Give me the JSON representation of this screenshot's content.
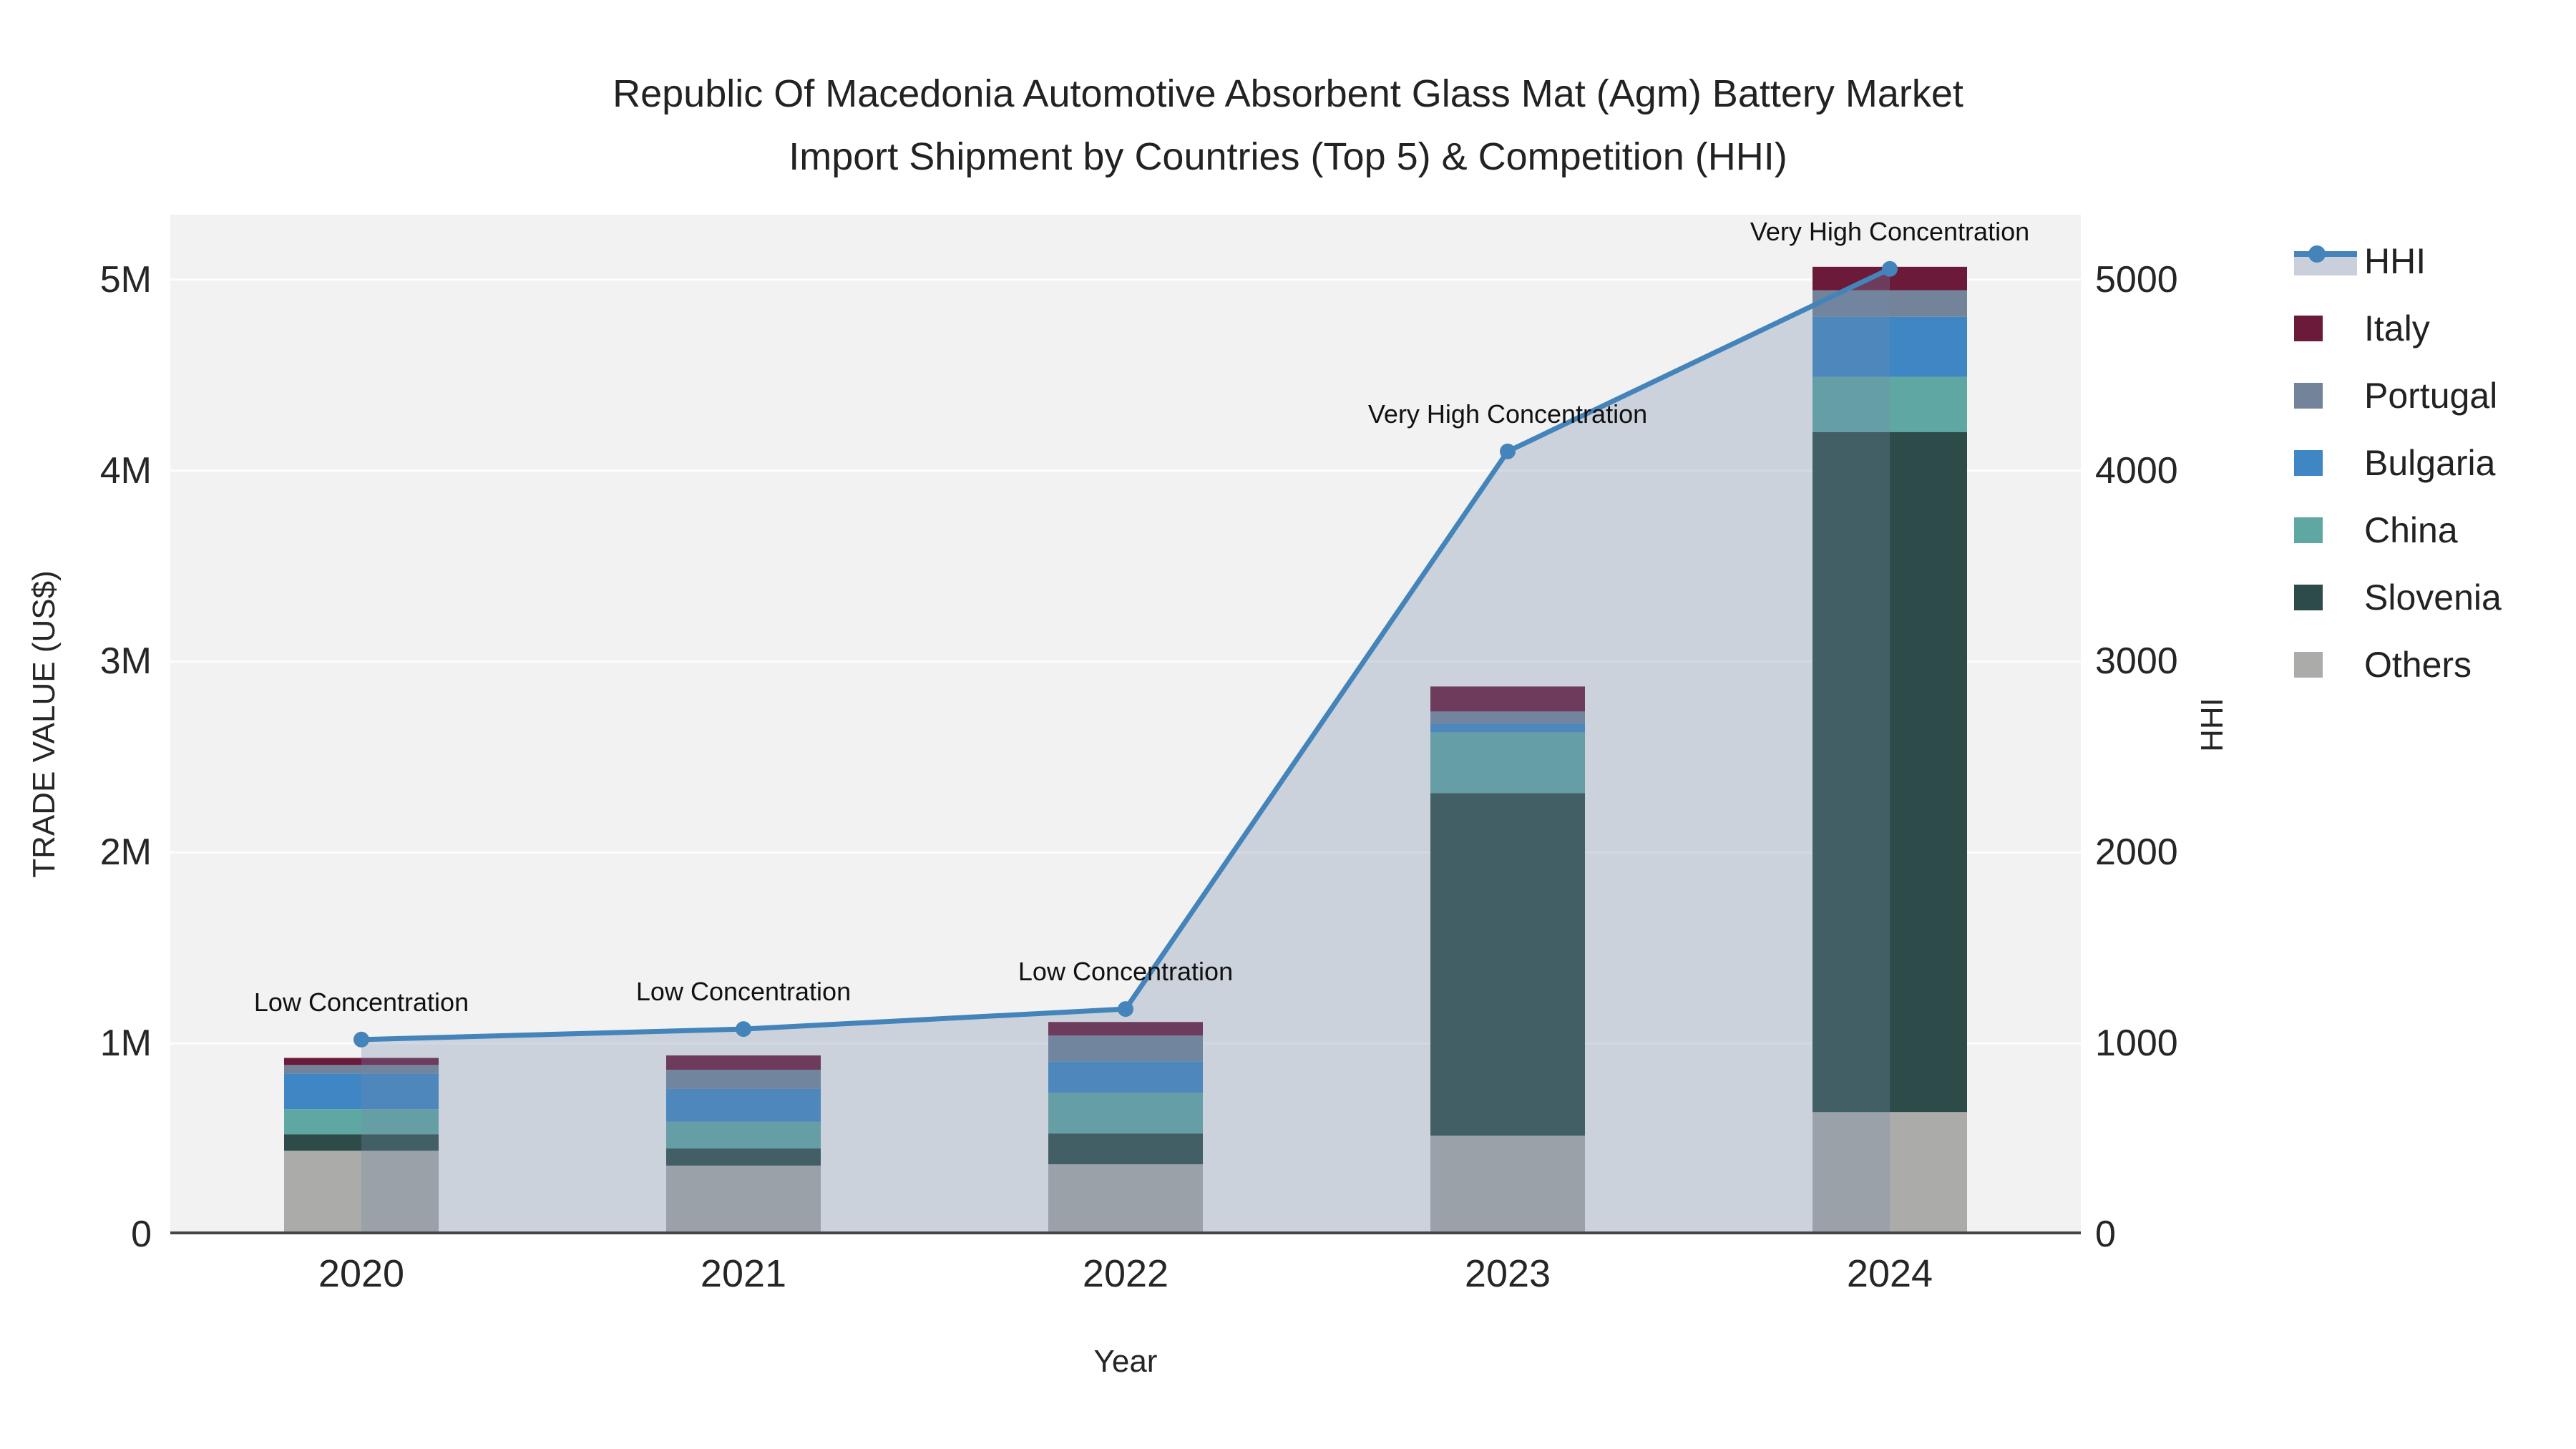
{
  "title": {
    "line1": "Republic Of Macedonia Automotive Absorbent Glass Mat (Agm) Battery Market",
    "line2": "Import Shipment by Countries (Top 5) & Competition (HHI)"
  },
  "axes": {
    "x": {
      "title": "Year",
      "ticks": [
        "2020",
        "2021",
        "2022",
        "2023",
        "2024"
      ]
    },
    "y_left": {
      "title": "TRADE VALUE (US$)",
      "ticks": [
        "0",
        "1M",
        "2M",
        "3M",
        "4M",
        "5M"
      ]
    },
    "y_right": {
      "title": "HHI",
      "ticks": [
        "0",
        "1000",
        "2000",
        "3000",
        "4000",
        "5000"
      ]
    }
  },
  "legend": {
    "items": [
      {
        "label": "HHI",
        "type": "line-area",
        "color": "#4484ba",
        "band_color": "#c9d0db"
      },
      {
        "label": "Italy",
        "type": "swatch",
        "color": "#6b1a3a"
      },
      {
        "label": "Portugal",
        "type": "swatch",
        "color": "#72839a"
      },
      {
        "label": "Bulgaria",
        "type": "swatch",
        "color": "#3e86c4"
      },
      {
        "label": "China",
        "type": "swatch",
        "color": "#5fa7a3"
      },
      {
        "label": "Slovenia",
        "type": "swatch",
        "color": "#2d4c49"
      },
      {
        "label": "Others",
        "type": "swatch",
        "color": "#abacaa"
      }
    ]
  },
  "colors": {
    "plot_bg": "#f2f2f2",
    "gridline": "#ffffff",
    "axis_line": "#454545",
    "hhi_line": "#4484ba",
    "hhi_area_rgba": "rgba(116,139,168,0.31)",
    "annotation_text": "#111111"
  },
  "chart_data": {
    "type": "bar",
    "subtype": "stacked bars (trade value, left axis) + HHI line with area fill (right axis)",
    "categories": [
      "2020",
      "2021",
      "2022",
      "2023",
      "2024"
    ],
    "series": [
      {
        "name": "Others",
        "color": "#abacaa",
        "values_musd": [
          0.438,
          0.36,
          0.367,
          0.517,
          0.64
        ]
      },
      {
        "name": "Slovenia",
        "color": "#2d4c49",
        "values_musd": [
          0.086,
          0.09,
          0.161,
          1.794,
          3.562
        ]
      },
      {
        "name": "China",
        "color": "#5fa7a3",
        "values_musd": [
          0.131,
          0.139,
          0.213,
          0.318,
          0.289
        ]
      },
      {
        "name": "Bulgaria",
        "color": "#3e86c4",
        "values_musd": [
          0.187,
          0.172,
          0.165,
          0.045,
          0.314
        ]
      },
      {
        "name": "Portugal",
        "color": "#72839a",
        "values_musd": [
          0.045,
          0.101,
          0.135,
          0.064,
          0.139
        ]
      },
      {
        "name": "Italy",
        "color": "#6b1a3a",
        "values_musd": [
          0.037,
          0.075,
          0.071,
          0.131,
          0.123
        ]
      }
    ],
    "stack_totals_musd": [
      0.924,
      0.937,
      1.112,
      2.869,
      5.067
    ],
    "hhi": {
      "name": "HHI",
      "values": [
        1020,
        1075,
        1180,
        4100,
        5056
      ],
      "point_labels": [
        "Low Concentration",
        "Low Concentration",
        "Low Concentration",
        "Very High Concentration",
        "Very High Concentration"
      ]
    },
    "title": "Republic Of Macedonia Automotive Absorbent Glass Mat (Agm) Battery Market Import Shipment by Countries (Top 5) & Competition (HHI)",
    "xlabel": "Year",
    "ylabel_left": "TRADE VALUE (US$)",
    "ylabel_right": "HHI",
    "ylim_left_musd": [
      0,
      5.34
    ],
    "ylim_right": [
      0,
      5340
    ],
    "grid": "horizontal",
    "legend_position": "right"
  }
}
